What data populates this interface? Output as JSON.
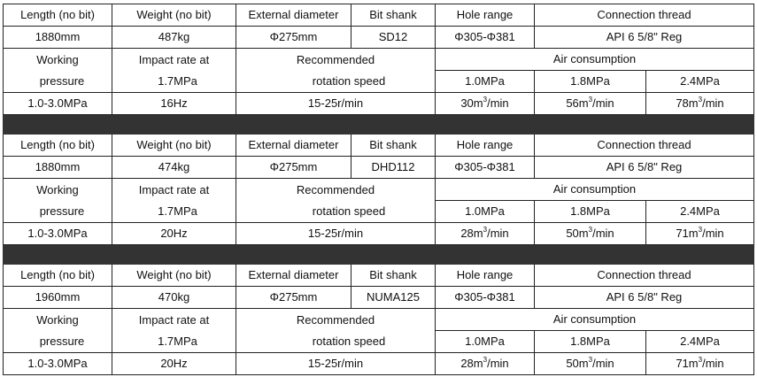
{
  "headers": {
    "length": "Length (no bit)",
    "weight": "Weight (no bit)",
    "diameter": "External diameter",
    "shank": "Bit shank",
    "hole": "Hole range",
    "thread": "Connection thread",
    "working_1": "Working",
    "working_2": "pressure",
    "impact_1": "Impact rate at",
    "impact_2": "1.7MPa",
    "rotation_1": "Recommended",
    "rotation_2": "rotation speed",
    "air": "Air consumption",
    "air_pressures": [
      "1.0MPa",
      "1.8MPa",
      "2.4MPa"
    ]
  },
  "air_unit_prefix": "m",
  "air_unit_sup": "3",
  "air_unit_suffix": "/min",
  "blocks": [
    {
      "length": "1880mm",
      "weight": "487kg",
      "diameter": "Φ275mm",
      "shank": "SD12",
      "hole": "Φ305-Φ381",
      "thread": "API 6 5/8\" Reg",
      "working": "1.0-3.0MPa",
      "impact": "16Hz",
      "rotation": "15-25r/min",
      "air": [
        "30",
        "56",
        "78"
      ]
    },
    {
      "length": "1880mm",
      "weight": "474kg",
      "diameter": "Φ275mm",
      "shank": "DHD112",
      "hole": "Φ305-Φ381",
      "thread": "API 6 5/8\" Reg",
      "working": "1.0-3.0MPa",
      "impact": "20Hz",
      "rotation": "15-25r/min",
      "air": [
        "28",
        "50",
        "71"
      ]
    },
    {
      "length": "1960mm",
      "weight": "470kg",
      "diameter": "Φ275mm",
      "shank": "NUMA125",
      "hole": "Φ305-Φ381",
      "thread": "API 6 5/8\" Reg",
      "working": "1.0-3.0MPa",
      "impact": "20Hz",
      "rotation": "15-25r/min",
      "air": [
        "28",
        "50",
        "71"
      ]
    }
  ],
  "colors": {
    "separator": "#333333",
    "border": "#222222"
  }
}
